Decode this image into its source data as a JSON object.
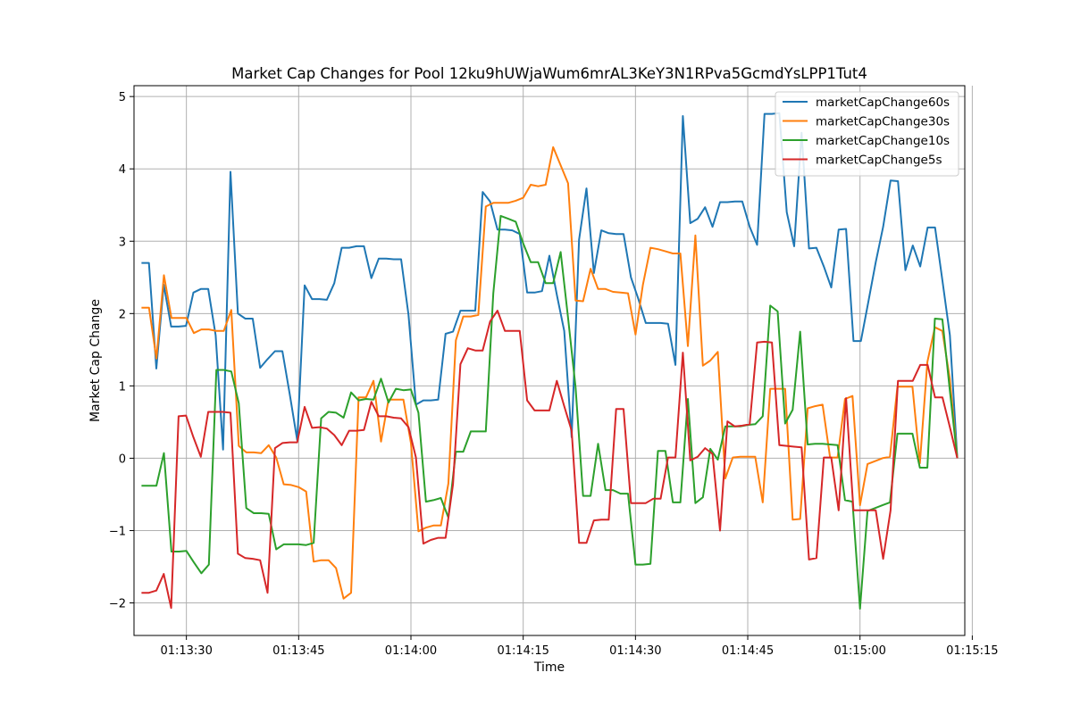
{
  "chart_data": {
    "type": "line",
    "title": "Market Cap Changes for Pool 12ku9hUWjaWum6mrAL3KeY3N1RPva5GcmdYsLPP1Tut4",
    "xlabel": "Time",
    "ylabel": "Market Cap Change",
    "x_start": "01:13:24",
    "x_end": "01:15:13",
    "xlim": [
      "01:13:23",
      "01:15:14"
    ],
    "ylim": [
      -2.45,
      5.15
    ],
    "x_ticks": [
      "01:13:30",
      "01:13:45",
      "01:14:00",
      "01:14:15",
      "01:14:30",
      "01:14:45",
      "01:15:00",
      "01:15:15"
    ],
    "y_ticks": [
      -2,
      -1,
      0,
      1,
      2,
      3,
      4,
      5
    ],
    "grid": true,
    "legend_position": "top-right",
    "series": [
      {
        "name": "marketCapChange60s",
        "color": "#1f77b4",
        "values": [
          2.7,
          2.7,
          1.24,
          2.4,
          1.82,
          1.82,
          1.83,
          2.29,
          2.34,
          2.34,
          1.7,
          0.12,
          3.96,
          2.0,
          1.93,
          1.93,
          1.25,
          1.37,
          1.48,
          1.48,
          0.88,
          0.25,
          2.39,
          2.2,
          2.2,
          2.19,
          2.42,
          2.91,
          2.91,
          2.93,
          2.93,
          2.49,
          2.76,
          2.76,
          2.75,
          2.75,
          1.98,
          0.74,
          0.8,
          0.8,
          0.81,
          1.72,
          1.75,
          2.04,
          2.04,
          2.04,
          3.68,
          3.55,
          3.16,
          3.16,
          3.15,
          3.1,
          2.29,
          2.29,
          2.31,
          2.8,
          2.26,
          1.76,
          0.29,
          3.02,
          3.73,
          2.56,
          3.15,
          3.11,
          3.1,
          3.1,
          2.5,
          2.2,
          1.87,
          1.87,
          1.87,
          1.86,
          1.29,
          4.73,
          3.25,
          3.31,
          3.47,
          3.2,
          3.54,
          3.54,
          3.55,
          3.55,
          3.2,
          2.95,
          4.76,
          4.76,
          4.77,
          3.4,
          2.93,
          4.5,
          2.9,
          2.91,
          2.65,
          2.36,
          3.16,
          3.17,
          1.62,
          1.62,
          2.16,
          2.71,
          3.2,
          3.84,
          3.83,
          2.6,
          2.94,
          2.65,
          3.19,
          3.19,
          2.45,
          1.7,
          0.0
        ],
        "ylabel": "",
        "xlabel": ""
      },
      {
        "name": "marketCapChange30s",
        "color": "#ff7f0e",
        "values": [
          2.08,
          2.08,
          1.38,
          2.53,
          1.94,
          1.94,
          1.94,
          1.73,
          1.78,
          1.78,
          1.76,
          1.76,
          2.05,
          0.17,
          0.08,
          0.08,
          0.07,
          0.18,
          0.01,
          -0.36,
          -0.37,
          -0.4,
          -0.46,
          -1.43,
          -1.41,
          -1.41,
          -1.52,
          -1.94,
          -1.86,
          0.84,
          0.84,
          1.07,
          0.23,
          0.81,
          0.81,
          0.81,
          0.21,
          -1.01,
          -0.96,
          -0.93,
          -0.93,
          -0.35,
          1.63,
          1.96,
          1.96,
          1.98,
          3.48,
          3.53,
          3.53,
          3.53,
          3.56,
          3.6,
          3.78,
          3.76,
          3.78,
          4.3,
          4.05,
          3.8,
          2.18,
          2.17,
          2.62,
          2.34,
          2.34,
          2.3,
          2.29,
          2.28,
          1.71,
          2.4,
          2.91,
          2.89,
          2.86,
          2.83,
          2.83,
          1.55,
          3.08,
          1.28,
          1.35,
          1.47,
          -0.28,
          0.01,
          0.02,
          0.02,
          0.02,
          -0.61,
          0.96,
          0.96,
          0.96,
          -0.85,
          -0.84,
          0.69,
          0.72,
          0.74,
          0.01,
          0.01,
          0.82,
          0.86,
          -0.65,
          -0.08,
          -0.04,
          0.0,
          0.02,
          0.99,
          0.99,
          0.99,
          -0.07,
          1.33,
          1.81,
          1.76,
          1.1,
          0.0
        ],
        "ylabel": "",
        "xlabel": ""
      },
      {
        "name": "marketCapChange10s",
        "color": "#2ca02c",
        "values": [
          -0.38,
          -0.38,
          -0.38,
          0.07,
          -1.29,
          -1.29,
          -1.28,
          -1.44,
          -1.59,
          -1.47,
          1.22,
          1.22,
          1.2,
          0.76,
          -0.69,
          -0.76,
          -0.76,
          -0.77,
          -1.26,
          -1.19,
          -1.19,
          -1.19,
          -1.2,
          -1.17,
          0.55,
          0.64,
          0.63,
          0.56,
          0.91,
          0.8,
          0.82,
          0.81,
          1.1,
          0.77,
          0.96,
          0.94,
          0.95,
          0.63,
          -0.6,
          -0.58,
          -0.55,
          -0.82,
          0.09,
          0.09,
          0.37,
          0.37,
          0.37,
          2.28,
          3.35,
          3.31,
          3.27,
          2.97,
          2.71,
          2.71,
          2.42,
          2.42,
          2.85,
          1.94,
          0.98,
          -0.52,
          -0.52,
          0.2,
          -0.44,
          -0.44,
          -0.49,
          -0.49,
          -1.47,
          -1.47,
          -1.46,
          0.1,
          0.1,
          -0.61,
          -0.61,
          0.82,
          -0.62,
          -0.54,
          0.13,
          -0.02,
          0.44,
          0.44,
          0.44,
          0.46,
          0.47,
          0.58,
          2.11,
          2.03,
          0.48,
          0.67,
          1.75,
          0.19,
          0.2,
          0.2,
          0.19,
          0.18,
          -0.58,
          -0.6,
          -2.08,
          -0.73,
          -0.69,
          -0.65,
          -0.61,
          0.34,
          0.34,
          0.34,
          -0.13,
          -0.13,
          1.93,
          1.92,
          0.94,
          0.0
        ],
        "ylabel": "",
        "xlabel": ""
      },
      {
        "name": "marketCapChange5s",
        "color": "#d62728",
        "values": [
          -1.86,
          -1.86,
          -1.83,
          -1.6,
          -2.07,
          0.58,
          0.59,
          0.29,
          0.02,
          0.64,
          0.64,
          0.64,
          0.63,
          -1.32,
          -1.38,
          -1.39,
          -1.41,
          -1.86,
          0.14,
          0.21,
          0.22,
          0.22,
          0.71,
          0.42,
          0.43,
          0.41,
          0.32,
          0.18,
          0.38,
          0.38,
          0.39,
          0.78,
          0.58,
          0.58,
          0.56,
          0.55,
          0.43,
          0.01,
          -1.18,
          -1.13,
          -1.1,
          -1.1,
          -0.36,
          1.3,
          1.52,
          1.49,
          1.49,
          1.89,
          2.04,
          1.76,
          1.76,
          1.76,
          0.8,
          0.66,
          0.66,
          0.66,
          1.07,
          0.72,
          0.38,
          -1.17,
          -1.17,
          -0.86,
          -0.85,
          -0.85,
          0.68,
          0.68,
          -0.62,
          -0.62,
          -0.62,
          -0.56,
          -0.56,
          0.01,
          0.01,
          1.46,
          -0.03,
          0.02,
          0.14,
          0.06,
          -1.0,
          0.51,
          0.44,
          0.45,
          0.47,
          1.6,
          1.61,
          1.6,
          0.18,
          0.17,
          0.16,
          0.15,
          -1.4,
          -1.38,
          0.01,
          0.01,
          -0.72,
          0.83,
          -0.72,
          -0.72,
          -0.72,
          -0.72,
          -1.39,
          -0.72,
          1.07,
          1.07,
          1.07,
          1.29,
          1.29,
          0.84,
          0.84,
          0.43,
          0.0
        ],
        "ylabel": "",
        "xlabel": ""
      }
    ]
  }
}
